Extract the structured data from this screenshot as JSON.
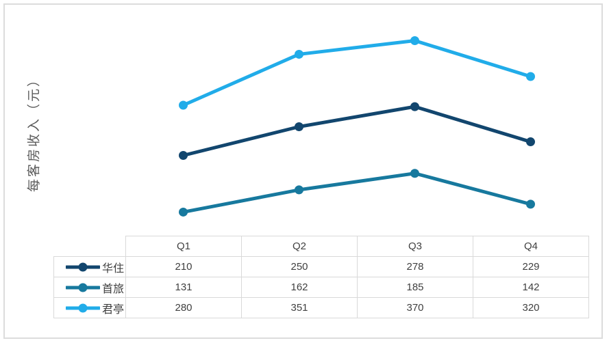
{
  "chart_data": {
    "type": "line",
    "categories": [
      "Q1",
      "Q2",
      "Q3",
      "Q4"
    ],
    "series": [
      {
        "name": "华住",
        "values": [
          210,
          250,
          278,
          229
        ],
        "color": "#12466E"
      },
      {
        "name": "首旅",
        "values": [
          131,
          162,
          185,
          142
        ],
        "color": "#17799E"
      },
      {
        "name": "君亭",
        "values": [
          280,
          351,
          370,
          320
        ],
        "color": "#21ACE9"
      }
    ],
    "title": "",
    "xlabel": "",
    "ylabel": "每客房收入（元）",
    "ylim": [
      100,
      400
    ],
    "grid": false,
    "axes_visible": false,
    "legend_position": "table-left-column",
    "marker": "circle"
  },
  "frame": {
    "border_color": "#dcdcdc",
    "table_border_color": "#d9d9d9",
    "text_color": "#404040",
    "axis_title_color": "#595959"
  }
}
